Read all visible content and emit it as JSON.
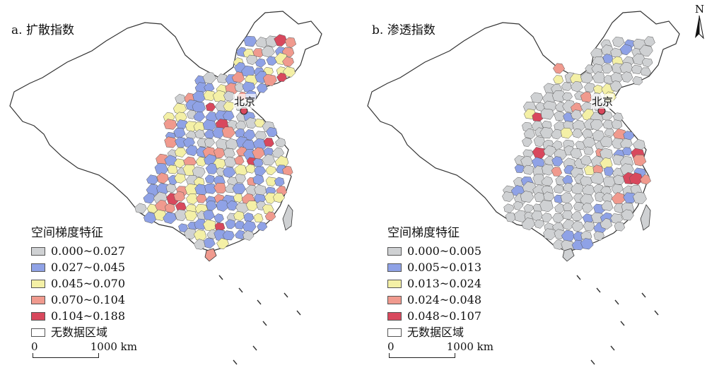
{
  "north_label": "N",
  "colors": {
    "bin1": "#cfd1d3",
    "bin2": "#8fa2e6",
    "bin3": "#f4f0a6",
    "bin4": "#f09a8e",
    "bin5": "#d8485d",
    "nodata": "#ffffff",
    "outline": "#333333",
    "capital_star": "#d8485d"
  },
  "panels": [
    {
      "title": "a. 扩散指数",
      "capital": "北京",
      "legend": {
        "title": "空间梯度特征",
        "items": [
          {
            "label": "0.000~0.027",
            "color": "#cfd1d3"
          },
          {
            "label": "0.027~0.045",
            "color": "#8fa2e6"
          },
          {
            "label": "0.045~0.070",
            "color": "#f4f0a6"
          },
          {
            "label": "0.070~0.104",
            "color": "#f09a8e"
          },
          {
            "label": "0.104~0.188",
            "color": "#d8485d"
          },
          {
            "label": "无数据区域",
            "color": "#ffffff"
          }
        ]
      },
      "scale": {
        "start": "0",
        "end": "1000 km"
      }
    },
    {
      "title": "b. 渗透指数",
      "capital": "北京",
      "legend": {
        "title": "空间梯度特征",
        "items": [
          {
            "label": "0.000~0.005",
            "color": "#cfd1d3"
          },
          {
            "label": "0.005~0.013",
            "color": "#8fa2e6"
          },
          {
            "label": "0.013~0.024",
            "color": "#f4f0a6"
          },
          {
            "label": "0.024~0.048",
            "color": "#f09a8e"
          },
          {
            "label": "0.048~0.107",
            "color": "#d8485d"
          },
          {
            "label": "无数据区域",
            "color": "#ffffff"
          }
        ]
      },
      "scale": {
        "start": "0",
        "end": "1000 km"
      }
    }
  ]
}
